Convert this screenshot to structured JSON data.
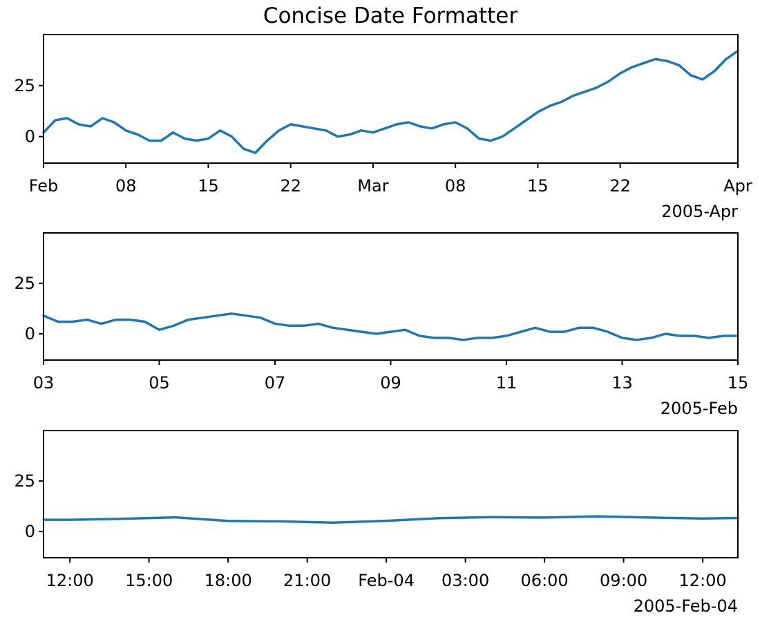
{
  "title": "Concise Date Formatter",
  "colors": {
    "line": "#1f77b4",
    "axes": "#000000"
  },
  "chart_data": [
    {
      "type": "line",
      "x_type": "date",
      "xlim": [
        "2005-02-01",
        "2005-04-01"
      ],
      "ylim": [
        -13,
        50
      ],
      "yticks": [
        0,
        25
      ],
      "ytick_labels": [
        "0",
        "25"
      ],
      "xticks": [
        "2005-02-01",
        "2005-02-08",
        "2005-02-15",
        "2005-02-22",
        "2005-03-01",
        "2005-03-08",
        "2005-03-15",
        "2005-03-22",
        "2005-04-01"
      ],
      "xtick_labels": [
        "Feb",
        "08",
        "15",
        "22",
        "Mar",
        "08",
        "15",
        "22",
        "Apr"
      ],
      "offset_label": "2005-Apr",
      "grid": false,
      "series": [
        {
          "x": [
            "2005-02-01",
            "2005-02-02",
            "2005-02-03",
            "2005-02-04",
            "2005-02-05",
            "2005-02-06",
            "2005-02-07",
            "2005-02-08",
            "2005-02-09",
            "2005-02-10",
            "2005-02-11",
            "2005-02-12",
            "2005-02-13",
            "2005-02-14",
            "2005-02-15",
            "2005-02-16",
            "2005-02-17",
            "2005-02-18",
            "2005-02-19",
            "2005-02-20",
            "2005-02-21",
            "2005-02-22",
            "2005-02-23",
            "2005-02-24",
            "2005-02-25",
            "2005-02-26",
            "2005-02-27",
            "2005-02-28",
            "2005-03-01",
            "2005-03-02",
            "2005-03-03",
            "2005-03-04",
            "2005-03-05",
            "2005-03-06",
            "2005-03-07",
            "2005-03-08",
            "2005-03-09",
            "2005-03-10",
            "2005-03-11",
            "2005-03-12",
            "2005-03-13",
            "2005-03-14",
            "2005-03-15",
            "2005-03-16",
            "2005-03-17",
            "2005-03-18",
            "2005-03-19",
            "2005-03-20",
            "2005-03-21",
            "2005-03-22",
            "2005-03-23",
            "2005-03-24",
            "2005-03-25",
            "2005-03-26",
            "2005-03-27",
            "2005-03-28",
            "2005-03-29",
            "2005-03-30",
            "2005-03-31",
            "2005-04-01"
          ],
          "values": [
            2,
            8,
            9,
            6,
            5,
            9,
            7,
            3,
            1,
            -2,
            -2,
            2,
            -1,
            -2,
            -1,
            3,
            0,
            -6,
            -8,
            -2,
            3,
            6,
            5,
            4,
            3,
            0,
            1,
            3,
            2,
            4,
            6,
            7,
            5,
            4,
            6,
            7,
            4,
            -1,
            -2,
            0,
            4,
            8,
            12,
            15,
            17,
            20,
            22,
            24,
            27,
            31,
            34,
            36,
            38,
            37,
            35,
            30,
            28,
            32,
            38,
            42
          ]
        }
      ]
    },
    {
      "type": "line",
      "x_type": "date",
      "xlim": [
        "2005-02-03",
        "2005-02-15"
      ],
      "ylim": [
        -13,
        50
      ],
      "yticks": [
        0,
        25
      ],
      "ytick_labels": [
        "0",
        "25"
      ],
      "xticks": [
        "2005-02-03",
        "2005-02-05",
        "2005-02-07",
        "2005-02-09",
        "2005-02-11",
        "2005-02-13",
        "2005-02-15"
      ],
      "xtick_labels": [
        "03",
        "05",
        "07",
        "09",
        "11",
        "13",
        "15"
      ],
      "offset_label": "2005-Feb",
      "grid": false,
      "series": [
        {
          "x": [
            "2005-02-03 00:00",
            "2005-02-03 06:00",
            "2005-02-03 12:00",
            "2005-02-03 18:00",
            "2005-02-04 00:00",
            "2005-02-04 06:00",
            "2005-02-04 12:00",
            "2005-02-04 18:00",
            "2005-02-05 00:00",
            "2005-02-05 06:00",
            "2005-02-05 12:00",
            "2005-02-05 18:00",
            "2005-02-06 00:00",
            "2005-02-06 06:00",
            "2005-02-06 12:00",
            "2005-02-06 18:00",
            "2005-02-07 00:00",
            "2005-02-07 06:00",
            "2005-02-07 12:00",
            "2005-02-07 18:00",
            "2005-02-08 00:00",
            "2005-02-08 06:00",
            "2005-02-08 12:00",
            "2005-02-08 18:00",
            "2005-02-09 00:00",
            "2005-02-09 06:00",
            "2005-02-09 12:00",
            "2005-02-09 18:00",
            "2005-02-10 00:00",
            "2005-02-10 06:00",
            "2005-02-10 12:00",
            "2005-02-10 18:00",
            "2005-02-11 00:00",
            "2005-02-11 06:00",
            "2005-02-11 12:00",
            "2005-02-11 18:00",
            "2005-02-12 00:00",
            "2005-02-12 06:00",
            "2005-02-12 12:00",
            "2005-02-12 18:00",
            "2005-02-13 00:00",
            "2005-02-13 06:00",
            "2005-02-13 12:00",
            "2005-02-13 18:00",
            "2005-02-14 00:00",
            "2005-02-14 06:00",
            "2005-02-14 12:00",
            "2005-02-14 18:00",
            "2005-02-15 00:00"
          ],
          "values": [
            9,
            6,
            6,
            7,
            5,
            7,
            7,
            6,
            2,
            4,
            7,
            8,
            9,
            10,
            9,
            8,
            5,
            4,
            4,
            5,
            3,
            2,
            1,
            0,
            1,
            2,
            -1,
            -2,
            -2,
            -3,
            -2,
            -2,
            -1,
            1,
            3,
            1,
            1,
            3,
            3,
            1,
            -2,
            -3,
            -2,
            0,
            -1,
            -1,
            -2,
            -1,
            -1
          ]
        }
      ]
    },
    {
      "type": "line",
      "x_type": "datetime",
      "xlim": [
        "2005-02-03 11:00",
        "2005-02-04 13:20"
      ],
      "ylim": [
        -13,
        50
      ],
      "yticks": [
        0,
        25
      ],
      "ytick_labels": [
        "0",
        "25"
      ],
      "xticks": [
        "2005-02-03 12:00",
        "2005-02-03 15:00",
        "2005-02-03 18:00",
        "2005-02-03 21:00",
        "2005-02-04 00:00",
        "2005-02-04 03:00",
        "2005-02-04 06:00",
        "2005-02-04 09:00",
        "2005-02-04 12:00"
      ],
      "xtick_labels": [
        "12:00",
        "15:00",
        "18:00",
        "21:00",
        "Feb-04",
        "03:00",
        "06:00",
        "09:00",
        "12:00"
      ],
      "offset_label": "2005-Feb-04",
      "grid": false,
      "series": [
        {
          "x": [
            "2005-02-03 11:00",
            "2005-02-03 12:00",
            "2005-02-03 14:00",
            "2005-02-03 16:00",
            "2005-02-03 18:00",
            "2005-02-03 20:00",
            "2005-02-03 22:00",
            "2005-02-04 00:00",
            "2005-02-04 02:00",
            "2005-02-04 04:00",
            "2005-02-04 06:00",
            "2005-02-04 08:00",
            "2005-02-04 10:00",
            "2005-02-04 12:00",
            "2005-02-04 13:20"
          ],
          "values": [
            5.8,
            5.8,
            6.3,
            7.0,
            5.2,
            5.0,
            4.4,
            5.3,
            6.6,
            7.1,
            6.9,
            7.5,
            6.9,
            6.4,
            6.7
          ]
        }
      ]
    }
  ]
}
